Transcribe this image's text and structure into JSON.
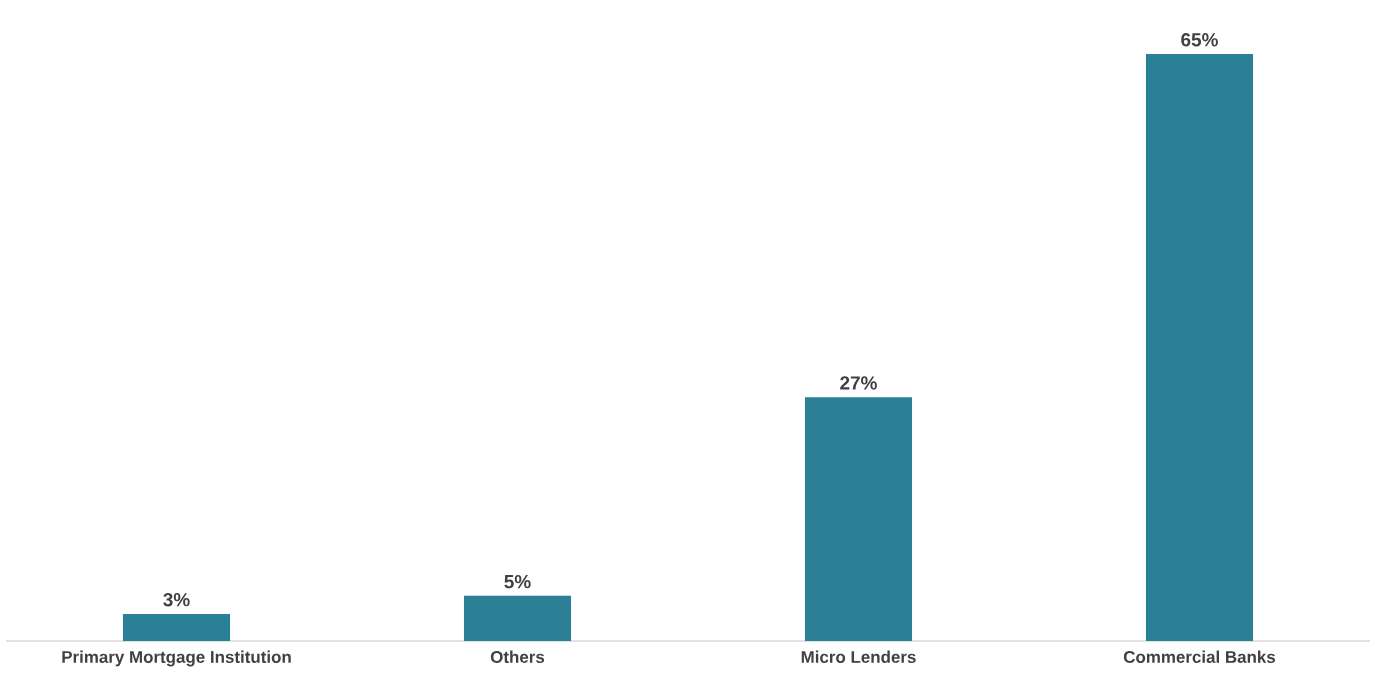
{
  "chart_data": {
    "type": "bar",
    "categories": [
      "Primary Mortgage Institution",
      "Others",
      "Micro Lenders",
      "Commercial Banks"
    ],
    "values": [
      3,
      5,
      27,
      65
    ],
    "color": "#2b7f96",
    "value_labels": [
      "3%",
      "5%",
      "27%",
      "65%"
    ]
  }
}
